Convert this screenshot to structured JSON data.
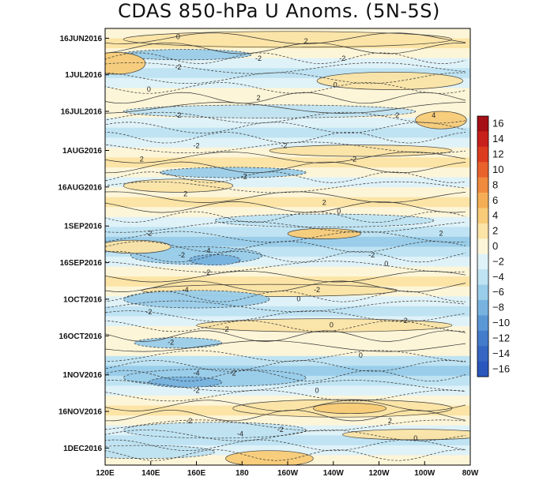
{
  "chart_data": {
    "type": "heatmap",
    "title": "CDAS 850-hPa U Anoms. (5N-5S)",
    "xlabel": "",
    "ylabel": "",
    "x_ticks": [
      "120E",
      "140E",
      "160E",
      "180",
      "160W",
      "140W",
      "120W",
      "100W",
      "80W"
    ],
    "y_ticks": [
      "16JUN2016",
      "1JUL2016",
      "16JUL2016",
      "1AUG2016",
      "16AUG2016",
      "1SEP2016",
      "16SEP2016",
      "1OCT2016",
      "16OCT2016",
      "1NOV2016",
      "16NOV2016",
      "1DEC2016"
    ],
    "x_range": [
      "120E",
      "80W"
    ],
    "y_range": [
      "12JUN2016",
      "8DEC2016"
    ],
    "contour_interval": 2,
    "colorbar_levels": [
      16,
      14,
      12,
      10,
      8,
      6,
      4,
      2,
      0,
      -2,
      -4,
      -6,
      -8,
      -10,
      -12,
      -14,
      -16
    ],
    "colorbar_colors": [
      "#a50f15",
      "#c8201b",
      "#dc3b1e",
      "#e9622c",
      "#f08a3c",
      "#f5ae55",
      "#f8cc78",
      "#fbe4a6",
      "#fdf5d8",
      "#dff2f8",
      "#bfe3f2",
      "#9acde9",
      "#78b3df",
      "#5a97d5",
      "#447ccc",
      "#3566c3",
      "#2a57bd"
    ],
    "band_values": [
      1.2,
      2.5,
      1.0,
      -1.5,
      -2.6,
      -1.0,
      0.8,
      1.6,
      0.5,
      -1.2,
      -2.1,
      -0.6,
      1.0,
      2.0,
      0.8,
      -0.5,
      1.2,
      2.4,
      0.6,
      -1.8,
      -3.0,
      -4.2,
      -2.5,
      -1.0,
      1.0,
      2.0,
      0.5,
      -1.2,
      -2.8,
      -1.5,
      0.4,
      1.8,
      0.6,
      -2.2,
      -4.5,
      -2.8,
      -0.8,
      1.6,
      2.6,
      1.0,
      -1.2,
      -3.2,
      -1.4,
      0.8
    ],
    "contour_labels": [
      "0",
      "-2",
      "2",
      "-4",
      "4"
    ]
  }
}
